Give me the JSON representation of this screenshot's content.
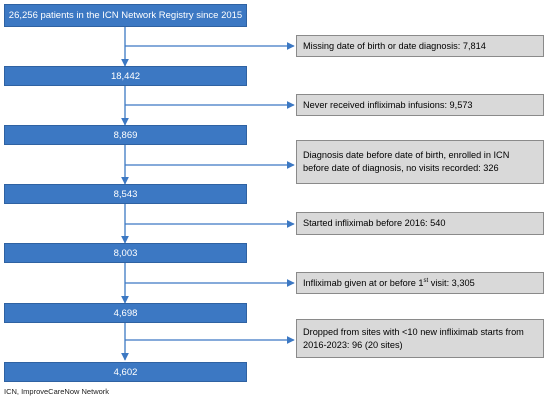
{
  "nodes": [
    {
      "label": "26,256 patients in the ICN Network Registry since 2015"
    },
    {
      "label": "18,442"
    },
    {
      "label": "8,869"
    },
    {
      "label": "8,543"
    },
    {
      "label": "8,003"
    },
    {
      "label": "4,698"
    },
    {
      "label": "4,602"
    }
  ],
  "exclusions": [
    {
      "label": "Missing date of birth or date diagnosis: 7,814"
    },
    {
      "label": "Never received infliximab infusions: 9,573"
    },
    {
      "label": "Diagnosis date before date of birth, enrolled in ICN before date of diagnosis, no visits recorded: 326"
    },
    {
      "label": "Started infliximab before 2016: 540"
    },
    {
      "pre": "Infliximab given at or before 1",
      "sup": "st",
      "post": " visit: 3,305"
    },
    {
      "label": "Dropped from sites with <10 new infliximab starts from 2016-2023: 96  (20 sites)"
    }
  ],
  "footnote": "ICN, ImproveCareNow Network",
  "colors": {
    "node": "#3c78c3",
    "exclusion": "#d9d9d9",
    "line": "#3c78c3"
  }
}
